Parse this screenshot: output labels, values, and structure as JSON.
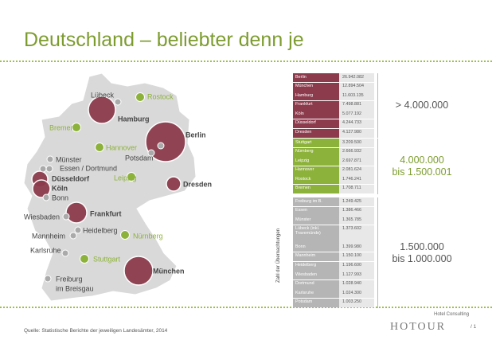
{
  "header": {
    "title": "Deutschland – beliebter denn je"
  },
  "map": {
    "cities": [
      {
        "label": "Lübeck",
        "kind": "small"
      },
      {
        "label": "Rostock",
        "kind": "mid"
      },
      {
        "label": "Hamburg",
        "kind": "top"
      },
      {
        "label": "Bremen",
        "kind": "mid"
      },
      {
        "label": "Berlin",
        "kind": "top"
      },
      {
        "label": "Hannover",
        "kind": "mid"
      },
      {
        "label": "Potsdam",
        "kind": "small"
      },
      {
        "label": "Münster",
        "kind": "small"
      },
      {
        "label": "Essen / Dortmund",
        "kind": "small"
      },
      {
        "label": "Düsseldorf",
        "kind": "top"
      },
      {
        "label": "Köln",
        "kind": "top"
      },
      {
        "label": "Bonn",
        "kind": "small"
      },
      {
        "label": "Leipzig",
        "kind": "mid"
      },
      {
        "label": "Dresden",
        "kind": "top"
      },
      {
        "label": "Wiesbaden",
        "kind": "small"
      },
      {
        "label": "Frankfurt",
        "kind": "top"
      },
      {
        "label": "Heidelberg",
        "kind": "small"
      },
      {
        "label": "Mannheim",
        "kind": "small"
      },
      {
        "label": "Nürnberg",
        "kind": "mid"
      },
      {
        "label": "Karlsruhe",
        "kind": "small"
      },
      {
        "label": "Stuttgart",
        "kind": "mid"
      },
      {
        "label": "München",
        "kind": "top"
      },
      {
        "label": "Freiburg",
        "kind": "small"
      },
      {
        "label": "im Breisgau",
        "kind": "none"
      }
    ]
  },
  "table": {
    "axis_label": "Zahl der Übernachtungen",
    "groups": [
      {
        "color": "#8c3b4c",
        "label_color": "#555555",
        "label": [
          "> 4.000.000"
        ],
        "rows": [
          [
            "Berlin",
            "26.942.082"
          ],
          [
            "München",
            "12.894.504"
          ],
          [
            "Hamburg",
            "11.603.135"
          ],
          [
            "Frankfurt",
            "7.498.881"
          ],
          [
            "Köln",
            "5.077.192"
          ],
          [
            "Düsseldorf",
            "4.244.733"
          ],
          [
            "Dresden",
            "4.127.980"
          ]
        ]
      },
      {
        "color": "#8db23b",
        "label_color": "#7d9c2f",
        "label": [
          "4.000.000",
          "bis 1.500.001"
        ],
        "rows": [
          [
            "Stuttgart",
            "3.209.500"
          ],
          [
            "Nürnberg",
            "2.666.932"
          ],
          [
            "Leipzig",
            "2.697.871"
          ],
          [
            "Hannover",
            "2.081.624"
          ],
          [
            "Rostock",
            "1.746.241"
          ],
          [
            "Bremen",
            "1.708.711"
          ]
        ]
      },
      {
        "color": "#b5b5b5",
        "label_color": "#555555",
        "label": [
          "1.500.000",
          "bis 1.000.000"
        ],
        "rows": [
          [
            "Freiburg im B.",
            "1.249.425"
          ],
          [
            "Essen",
            "1.386.466"
          ],
          [
            "Münster",
            "1.365.785"
          ],
          [
            "Lübeck (inkl. Travemünde)",
            "1.373.602"
          ],
          [
            "Bonn",
            "1.399.980"
          ],
          [
            "Mannheim",
            "1.150.100"
          ],
          [
            "Heidelberg",
            "1.196.600"
          ],
          [
            "Wiesbaden",
            "1.127.993"
          ],
          [
            "Dortmund",
            "1.028.940"
          ],
          [
            "Karlsruhe",
            "1.024.300"
          ],
          [
            "Potsdam",
            "1.003.250"
          ]
        ]
      }
    ]
  },
  "footer": {
    "source": "Quelle: Statistische Berichte der jeweiligen Landesämter, 2014",
    "tagline": "Hotel Consulting",
    "logo": "HOTOUR",
    "page": "/ 1"
  }
}
